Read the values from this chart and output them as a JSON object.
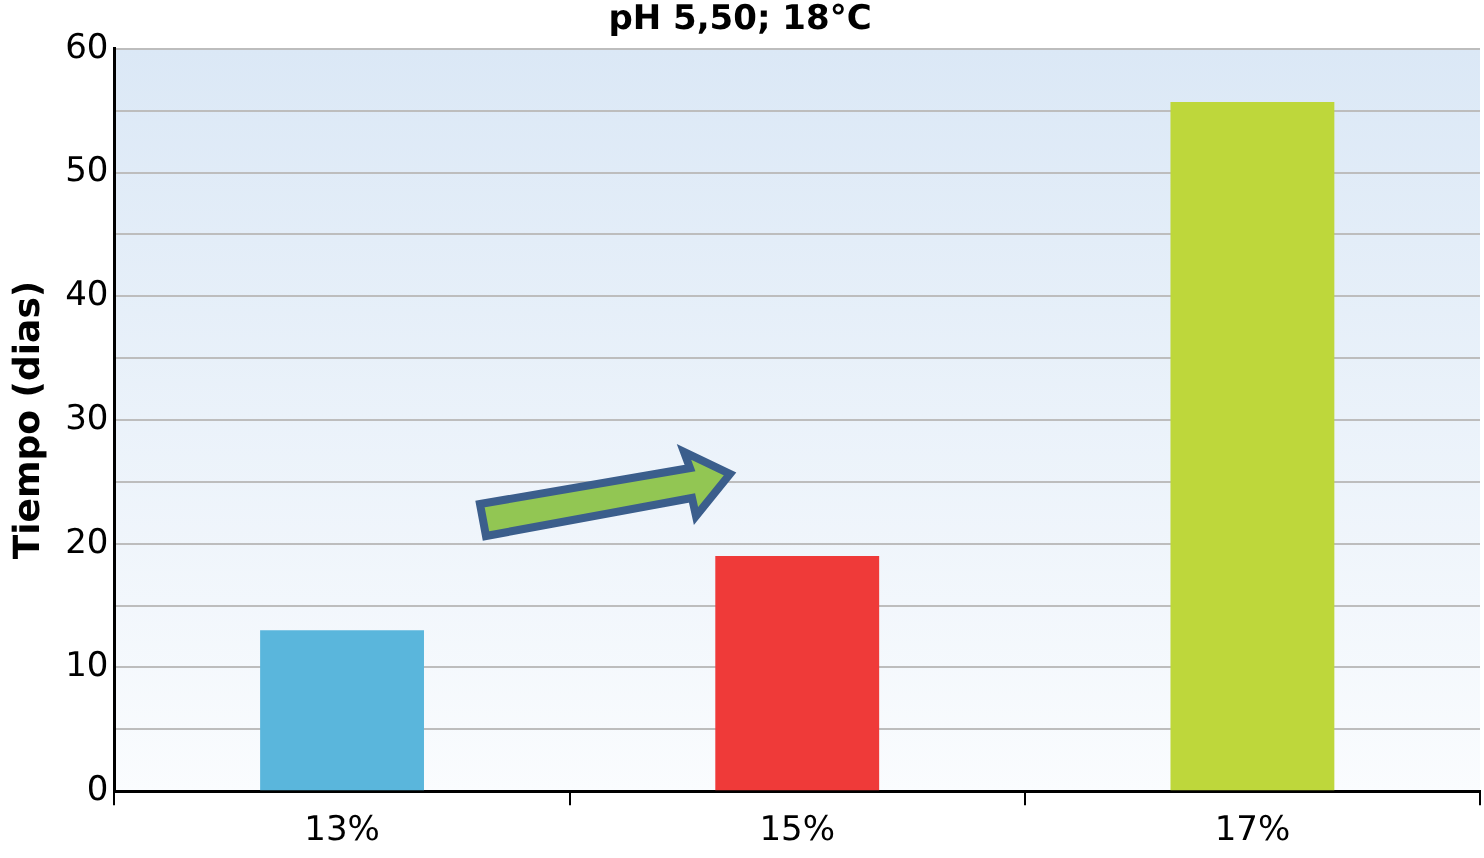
{
  "chart_data": {
    "type": "bar",
    "title": "pH 5,50; 18°C",
    "ylabel": "Tiempo (dias)",
    "categories": [
      "13%",
      "15%",
      "17%"
    ],
    "values": [
      13,
      19,
      55.7
    ],
    "colors": [
      "#5ab6dc",
      "#ef3a39",
      "#bed73b"
    ],
    "ylim": [
      0,
      60
    ],
    "yticks": [
      0,
      {
        "value": 5,
        "label": null
      },
      10,
      {
        "value": 15,
        "label": null
      },
      20,
      {
        "value": 25,
        "label": null
      },
      30,
      {
        "value": 35,
        "label": null
      },
      40,
      {
        "value": 45,
        "label": null
      },
      50,
      {
        "value": 55,
        "label": null
      },
      60
    ],
    "grid": "y",
    "legend": false
  }
}
